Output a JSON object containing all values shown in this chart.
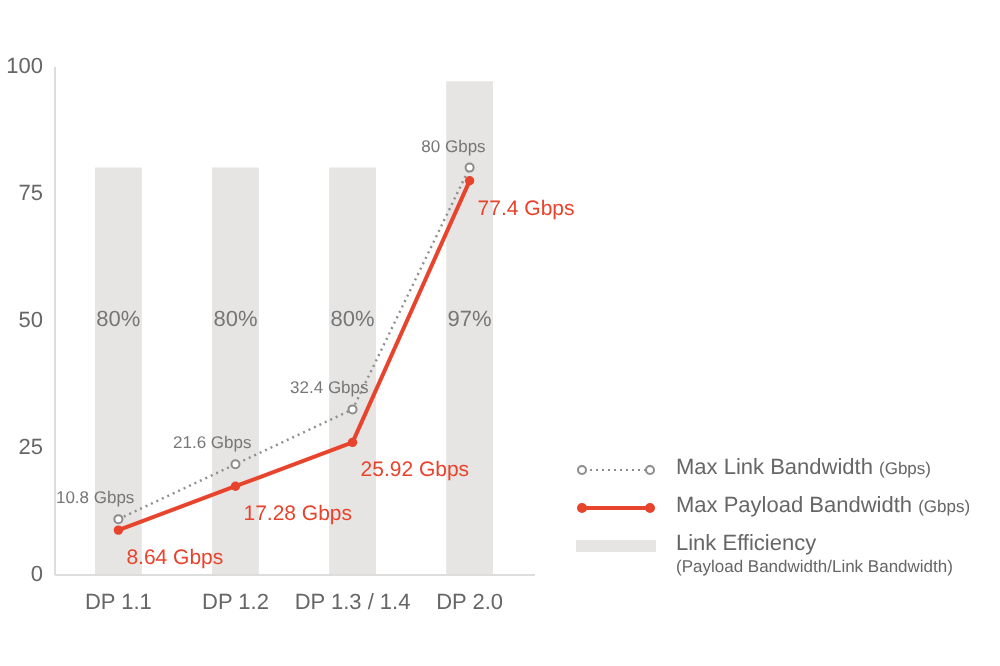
{
  "chart_data": {
    "type": "bar",
    "categories": [
      "DP 1.1",
      "DP 1.2",
      "DP 1.3 / 1.4",
      "DP 2.0"
    ],
    "series": [
      {
        "name": "Link Efficiency (Payload Bandwidth/Link Bandwidth)",
        "color": "#e6e5e3",
        "values": [
          80,
          80,
          80,
          97
        ],
        "value_labels": [
          "80%",
          "80%",
          "80%",
          "97%"
        ]
      },
      {
        "name": "Max Link Bandwidth (Gbps)",
        "type": "line",
        "color": "#8c8c8c",
        "line_style": "dotted",
        "marker": "circle",
        "values": [
          10.8,
          21.6,
          32.4,
          80
        ],
        "value_labels": [
          "10.8 Gbps",
          "21.6 Gbps",
          "32.4 Gbps",
          "80 Gbps"
        ]
      },
      {
        "name": "Max Payload Bandwidth (Gbps)",
        "type": "line",
        "color": "#e8432c",
        "line_style": "solid",
        "marker": "circle",
        "values": [
          8.64,
          17.28,
          25.92,
          77.4
        ],
        "value_labels": [
          "8.64 Gbps",
          "17.28 Gbps",
          "25.92 Gbps",
          "77.4 Gbps"
        ]
      }
    ],
    "ylim": [
      0,
      100
    ],
    "yticks": [
      0,
      25,
      50,
      75,
      100
    ],
    "grid": false,
    "legend": "bottom right"
  }
}
